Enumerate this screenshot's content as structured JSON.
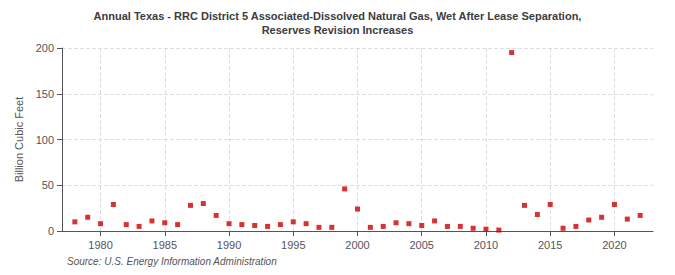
{
  "chart_data": {
    "type": "scatter",
    "title": "Annual Texas - RRC District 5 Associated-Dissolved Natural Gas, Wet After Lease Separation,\nReserves Revision Increases",
    "ylabel": "Billion Cubic Feet",
    "source": "Source: U.S. Energy Information Administration",
    "x": [
      1978,
      1979,
      1980,
      1981,
      1982,
      1983,
      1984,
      1985,
      1986,
      1987,
      1988,
      1989,
      1990,
      1991,
      1992,
      1993,
      1994,
      1995,
      1996,
      1997,
      1998,
      1999,
      2000,
      2001,
      2002,
      2003,
      2004,
      2005,
      2006,
      2007,
      2008,
      2009,
      2010,
      2011,
      2012,
      2013,
      2014,
      2015,
      2016,
      2017,
      2018,
      2019,
      2020,
      2021,
      2022
    ],
    "values": [
      10,
      15,
      8,
      29,
      7,
      5,
      11,
      9,
      7,
      28,
      30,
      17,
      8,
      7,
      6,
      5,
      7,
      10,
      8,
      4,
      4,
      46,
      24,
      4,
      5,
      9,
      8,
      6,
      11,
      5,
      5,
      3,
      2,
      1,
      195,
      28,
      18,
      29,
      3,
      5,
      12,
      15,
      29,
      13,
      17
    ],
    "color": "#cc0000",
    "marker": "square",
    "xlim": [
      1977,
      2023
    ],
    "xticks": [
      1980,
      1985,
      1990,
      1995,
      2000,
      2005,
      2010,
      2015,
      2020
    ],
    "ylim": [
      0,
      200
    ],
    "yticks": [
      0,
      50,
      100,
      150,
      200
    ],
    "grid": true
  }
}
